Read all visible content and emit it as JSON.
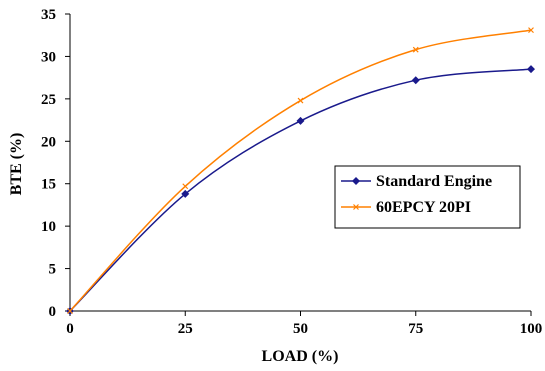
{
  "chart_data": {
    "type": "line",
    "title": "",
    "xlabel": "LOAD (%)",
    "ylabel": "BTE (%)",
    "x": [
      0,
      25,
      50,
      75,
      100
    ],
    "xlim": [
      0,
      100
    ],
    "ylim": [
      0,
      35
    ],
    "xticks": [
      "0",
      "25",
      "50",
      "75",
      "100"
    ],
    "yticks": [
      "0",
      "5",
      "10",
      "15",
      "20",
      "25",
      "30",
      "35"
    ],
    "grid": false,
    "legend_position": "right",
    "series": [
      {
        "name": "Standard Engine",
        "values": [
          0,
          13.8,
          22.4,
          27.2,
          28.5
        ],
        "color": "#1a1a8c",
        "marker": "diamond"
      },
      {
        "name": "60EPCY 20PI",
        "values": [
          0,
          14.7,
          24.8,
          30.8,
          33.1
        ],
        "color": "#ff8000",
        "marker": "x"
      }
    ]
  }
}
